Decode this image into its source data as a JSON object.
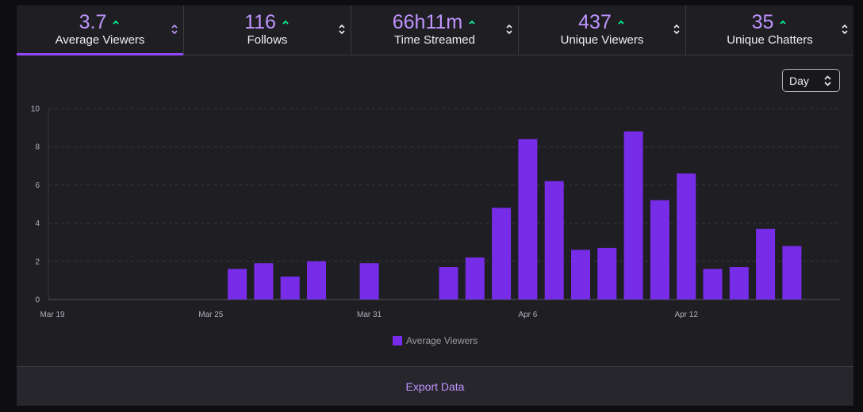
{
  "stats": [
    {
      "value": "3.7",
      "label": "Average Viewers",
      "trend": "up",
      "active": true
    },
    {
      "value": "116",
      "label": "Follows",
      "trend": "up",
      "active": false
    },
    {
      "value": "66h11m",
      "label": "Time Streamed",
      "trend": "up",
      "active": false
    },
    {
      "value": "437",
      "label": "Unique Viewers",
      "trend": "up",
      "active": false
    },
    {
      "value": "35",
      "label": "Unique Chatters",
      "trend": "up",
      "active": false
    }
  ],
  "granularity": {
    "selected": "Day"
  },
  "footer": {
    "export_label": "Export Data"
  },
  "colors": {
    "accent": "#9147ff",
    "bar": "#772ce8",
    "value_text": "#bf94ff",
    "trend_up": "#00f593"
  },
  "chart_data": {
    "type": "bar",
    "categories": [
      "Mar 19",
      "Mar 20",
      "Mar 21",
      "Mar 22",
      "Mar 23",
      "Mar 24",
      "Mar 25",
      "Mar 26",
      "Mar 27",
      "Mar 28",
      "Mar 29",
      "Mar 30",
      "Mar 31",
      "Apr 1",
      "Apr 2",
      "Apr 3",
      "Apr 4",
      "Apr 5",
      "Apr 6",
      "Apr 7",
      "Apr 8",
      "Apr 9",
      "Apr 10",
      "Apr 11",
      "Apr 12",
      "Apr 13",
      "Apr 14",
      "Apr 15",
      "Apr 16",
      "Apr 17"
    ],
    "tick_labels": [
      "Mar 19",
      "Mar 25",
      "Mar 31",
      "Apr 6",
      "Apr 12"
    ],
    "y_ticks": [
      0,
      2,
      4,
      6,
      8,
      10
    ],
    "series": [
      {
        "name": "Average Viewers",
        "values": [
          0,
          0,
          0,
          0,
          0,
          0,
          0,
          1.6,
          1.9,
          1.2,
          2.0,
          0,
          1.9,
          0,
          0,
          1.7,
          2.2,
          4.8,
          8.4,
          6.2,
          2.6,
          2.7,
          8.8,
          5.2,
          6.6,
          1.6,
          1.7,
          3.7,
          2.8,
          0
        ]
      }
    ],
    "ylim": [
      0,
      10
    ],
    "grid": true,
    "legend": "bottom-center"
  }
}
